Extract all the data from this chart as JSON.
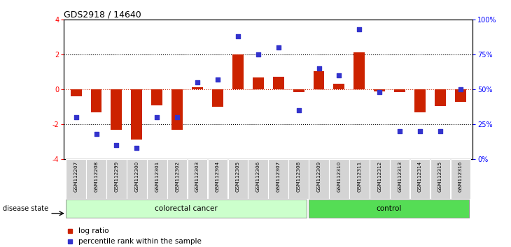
{
  "title": "GDS2918 / 14640",
  "samples": [
    "GSM112207",
    "GSM112208",
    "GSM112299",
    "GSM112300",
    "GSM112301",
    "GSM112302",
    "GSM112303",
    "GSM112304",
    "GSM112305",
    "GSM112306",
    "GSM112307",
    "GSM112308",
    "GSM112309",
    "GSM112310",
    "GSM112311",
    "GSM112312",
    "GSM112313",
    "GSM112314",
    "GSM112315",
    "GSM112316"
  ],
  "log_ratio": [
    -0.4,
    -1.3,
    -2.3,
    -2.85,
    -0.9,
    -2.3,
    0.15,
    -1.0,
    2.0,
    0.7,
    0.75,
    -0.15,
    1.05,
    0.35,
    2.15,
    -0.1,
    -0.15,
    -1.3,
    -0.95,
    -0.7
  ],
  "percentile": [
    30,
    18,
    10,
    8,
    30,
    30,
    55,
    57,
    88,
    75,
    80,
    35,
    65,
    60,
    93,
    48,
    20,
    20,
    20,
    50
  ],
  "colorectal_count": 12,
  "ylim_left": [
    -4,
    4
  ],
  "ylim_right": [
    0,
    100
  ],
  "yticks_left": [
    -4,
    -2,
    0,
    2,
    4
  ],
  "yticks_right": [
    0,
    25,
    50,
    75,
    100
  ],
  "ytick_labels_right": [
    "0%",
    "25%",
    "50%",
    "75%",
    "100%"
  ],
  "bar_color": "#cc2200",
  "dot_color": "#3333cc",
  "colorectal_color": "#ccffcc",
  "control_color": "#55dd55",
  "label_colorectal": "colorectal cancer",
  "label_control": "control",
  "disease_state_label": "disease state",
  "legend_log_ratio": "log ratio",
  "legend_percentile": "percentile rank within the sample",
  "bg_color": "#ffffff"
}
